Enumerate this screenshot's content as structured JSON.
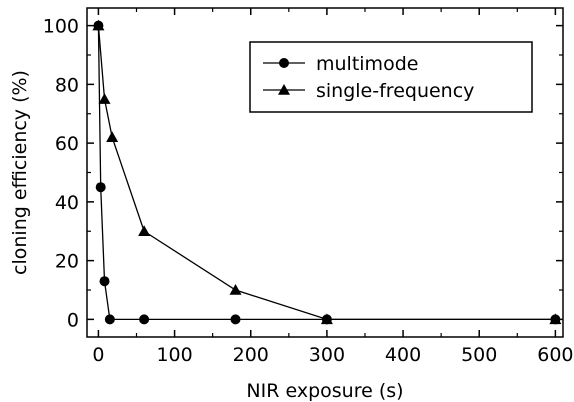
{
  "chart_data": {
    "type": "line",
    "title": "",
    "xlabel": "NIR exposure (s)",
    "ylabel": "cloning efficiency (%)",
    "xlim": [
      -15,
      610
    ],
    "ylim": [
      -6,
      106
    ],
    "xticks": [
      0,
      100,
      200,
      300,
      400,
      500,
      600
    ],
    "yticks": [
      0,
      20,
      40,
      60,
      80,
      100
    ],
    "grid": false,
    "legend_position": "top-right",
    "series": [
      {
        "name": "multimode",
        "marker": "circle",
        "x": [
          0,
          3,
          8,
          15,
          60,
          180,
          300,
          600
        ],
        "y": [
          100,
          45,
          13,
          0,
          0,
          0,
          0,
          0
        ]
      },
      {
        "name": "single-frequency",
        "marker": "triangle",
        "x": [
          0,
          8,
          18,
          60,
          180,
          300,
          600
        ],
        "y": [
          100,
          75,
          62,
          30,
          10,
          0,
          0
        ]
      }
    ]
  }
}
